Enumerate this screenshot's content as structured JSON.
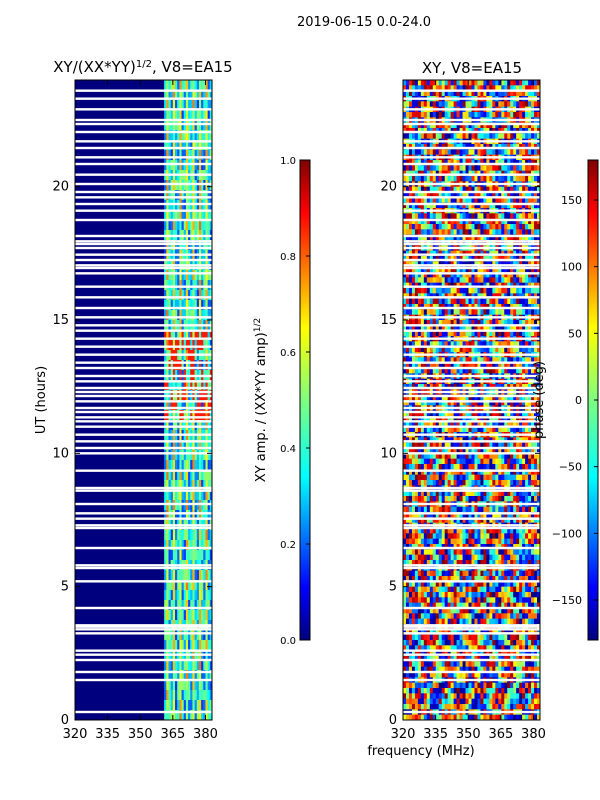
{
  "figure_title": "2019-06-15 0.0-24.0",
  "colors": {
    "jet": [
      "#00007f",
      "#0000ff",
      "#007fff",
      "#00ffff",
      "#7fff7f",
      "#ffff00",
      "#ff7f00",
      "#ff0000",
      "#7f0000"
    ],
    "gap": "#ffffff"
  },
  "chart_data": [
    {
      "type": "heatmap",
      "title": "XY/(XX*YY)",
      "title_sup": "1/2",
      "title_suffix": ", V8=EA15",
      "xlabel": "",
      "ylabel": "UT (hours)",
      "xlim": [
        320,
        383
      ],
      "ylim": [
        0,
        24
      ],
      "xticks": [
        320,
        335,
        350,
        365,
        380
      ],
      "yticks": [
        0,
        5,
        10,
        15,
        20
      ],
      "colorbar": {
        "label": "XY amp. / (XX*YY amp)",
        "label_sup": "1/2",
        "range": [
          0.0,
          1.0
        ],
        "ticks": [
          0.0,
          0.2,
          0.4,
          0.6,
          0.8,
          1.0
        ],
        "tick_labels": [
          "0.0",
          "0.2",
          "0.4",
          "0.6",
          "0.8",
          "1.0"
        ]
      },
      "description_value_ranges": [
        {
          "freq_range": [
            320,
            361
          ],
          "typical_value": 0.03
        },
        {
          "freq_range": [
            361,
            383
          ],
          "typical_value": 0.45
        }
      ]
    },
    {
      "type": "heatmap",
      "title": "XY, V8=EA15",
      "xlabel": "frequency (MHz)",
      "ylabel": "",
      "xlim": [
        320,
        383
      ],
      "ylim": [
        0,
        24
      ],
      "xticks": [
        320,
        335,
        350,
        365,
        380
      ],
      "yticks": [
        0,
        5,
        10,
        15,
        20
      ],
      "colorbar": {
        "label": "phase (deg)",
        "range": [
          -180,
          180
        ],
        "ticks": [
          -150,
          -100,
          -50,
          0,
          50,
          100,
          150
        ],
        "tick_labels": [
          "−150",
          "−100",
          "−50",
          "0",
          "50",
          "100",
          "150"
        ]
      }
    }
  ],
  "gap_times": [
    0.3,
    1.5,
    1.8,
    2.25,
    2.45,
    2.6,
    3.25,
    3.4,
    3.5,
    3.55,
    4.2,
    5.2,
    5.7,
    5.8,
    6.45,
    7.2,
    7.3,
    7.55,
    7.75,
    8.1,
    8.6,
    8.7,
    9.35,
    10.0,
    10.2,
    10.45,
    10.7,
    11.0,
    11.2,
    11.35,
    11.55,
    11.7,
    11.95,
    12.15,
    12.3,
    12.45,
    12.7,
    12.9,
    13.2,
    13.4,
    13.7,
    14.0,
    14.3,
    14.6,
    14.8,
    15.1,
    15.45,
    15.85,
    16.25,
    16.75,
    16.95,
    17.05,
    17.25,
    17.45,
    17.7,
    17.85,
    17.95,
    18.15,
    18.75,
    19.1,
    19.35,
    19.6,
    19.8,
    20.1,
    20.45,
    20.85,
    21.1,
    21.45,
    21.7,
    22.05,
    22.35,
    22.5,
    22.9,
    23.3,
    23.6
  ]
}
